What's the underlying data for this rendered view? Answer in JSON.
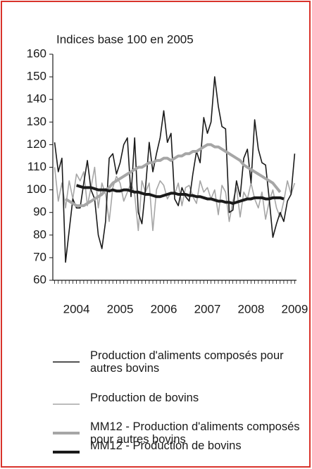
{
  "chart_data": {
    "type": "line",
    "title": "Indices base 100 en 2005",
    "categories": [
      null,
      null,
      null,
      null,
      null,
      null,
      "2004",
      null,
      null,
      null,
      null,
      null,
      null,
      null,
      null,
      null,
      null,
      null,
      "2005",
      null,
      null,
      null,
      null,
      null,
      null,
      null,
      null,
      null,
      null,
      null,
      "2006",
      null,
      null,
      null,
      null,
      null,
      null,
      null,
      null,
      null,
      null,
      null,
      "2007",
      null,
      null,
      null,
      null,
      null,
      null,
      null,
      null,
      null,
      null,
      null,
      "2008",
      null,
      null,
      null,
      null,
      null,
      null,
      null,
      null,
      null,
      null,
      null,
      "2009"
    ],
    "ylim": [
      60,
      160
    ],
    "yticks": [
      60,
      70,
      80,
      90,
      100,
      110,
      120,
      130,
      140,
      150,
      160
    ],
    "grid": false,
    "series": [
      {
        "name": "Production d'aliments composés pour autres bovins",
        "color": "#1a1a1a",
        "width": 1.6,
        "values": [
          121,
          108,
          114,
          68,
          82,
          96,
          92,
          92,
          103,
          113,
          100,
          96,
          80,
          74,
          86,
          114,
          116,
          107,
          112,
          120,
          123,
          97,
          123,
          90,
          85,
          101,
          121,
          108,
          116,
          123,
          135,
          121,
          125,
          96,
          93,
          101,
          97,
          95,
          107,
          117,
          112,
          132,
          125,
          130,
          150,
          137,
          128,
          127,
          90,
          91,
          104,
          97,
          114,
          118,
          103,
          131,
          118,
          112,
          111,
          96,
          79,
          85,
          90,
          86,
          95,
          98,
          116
        ]
      },
      {
        "name": "Production de bovins",
        "color": "#a6a6a6",
        "width": 1.6,
        "values": [
          110,
          95,
          103,
          92,
          104,
          96,
          107,
          104,
          108,
          93,
          101,
          110,
          92,
          103,
          98,
          86,
          101,
          106,
          103,
          95,
          99,
          103,
          98,
          82,
          104,
          99,
          103,
          82,
          100,
          104,
          102,
          96,
          99,
          98,
          103,
          93,
          101,
          102,
          97,
          94,
          104,
          99,
          101,
          96,
          100,
          89,
          102,
          99,
          86,
          95,
          101,
          88,
          99,
          96,
          103,
          96,
          92,
          99,
          87,
          95,
          100,
          92,
          88,
          95,
          104,
          98,
          103
        ]
      },
      {
        "name": "MM12 - Production d'aliments composés pour autres bovins",
        "color": "#a6a6a6",
        "width": 4,
        "values": [
          null,
          null,
          null,
          96,
          95,
          94,
          93,
          93,
          93,
          94,
          95,
          96,
          97,
          98,
          100,
          101,
          103,
          104,
          105,
          106,
          107,
          108,
          109,
          110,
          110,
          111,
          112,
          112,
          113,
          113,
          114,
          114,
          113,
          114,
          115,
          115,
          116,
          116,
          117,
          117,
          118,
          119,
          120,
          120,
          119,
          119,
          118,
          117,
          116,
          115,
          114,
          113,
          111,
          110,
          109,
          108,
          107,
          106,
          105,
          104,
          103,
          101,
          99,
          null,
          null,
          null,
          null
        ]
      },
      {
        "name": "MM12 - Production de bovins",
        "color": "#1a1a1a",
        "width": 4,
        "values": [
          null,
          null,
          null,
          null,
          null,
          null,
          102,
          101.5,
          101,
          101,
          101,
          100.5,
          100,
          100,
          100,
          99.5,
          100,
          99.5,
          99.5,
          100,
          100,
          99.5,
          99,
          99,
          98.5,
          98,
          98,
          97.5,
          97,
          97,
          97.5,
          98,
          98.5,
          98.5,
          98,
          98,
          98,
          97.5,
          97.5,
          97,
          97,
          96.5,
          96,
          96,
          95.5,
          95,
          95,
          94.5,
          94.5,
          94,
          94.5,
          95,
          95.5,
          96,
          96,
          96.5,
          96.5,
          96.5,
          96,
          96,
          96.5,
          96.5,
          96.5,
          96,
          null,
          null,
          null
        ]
      }
    ]
  }
}
